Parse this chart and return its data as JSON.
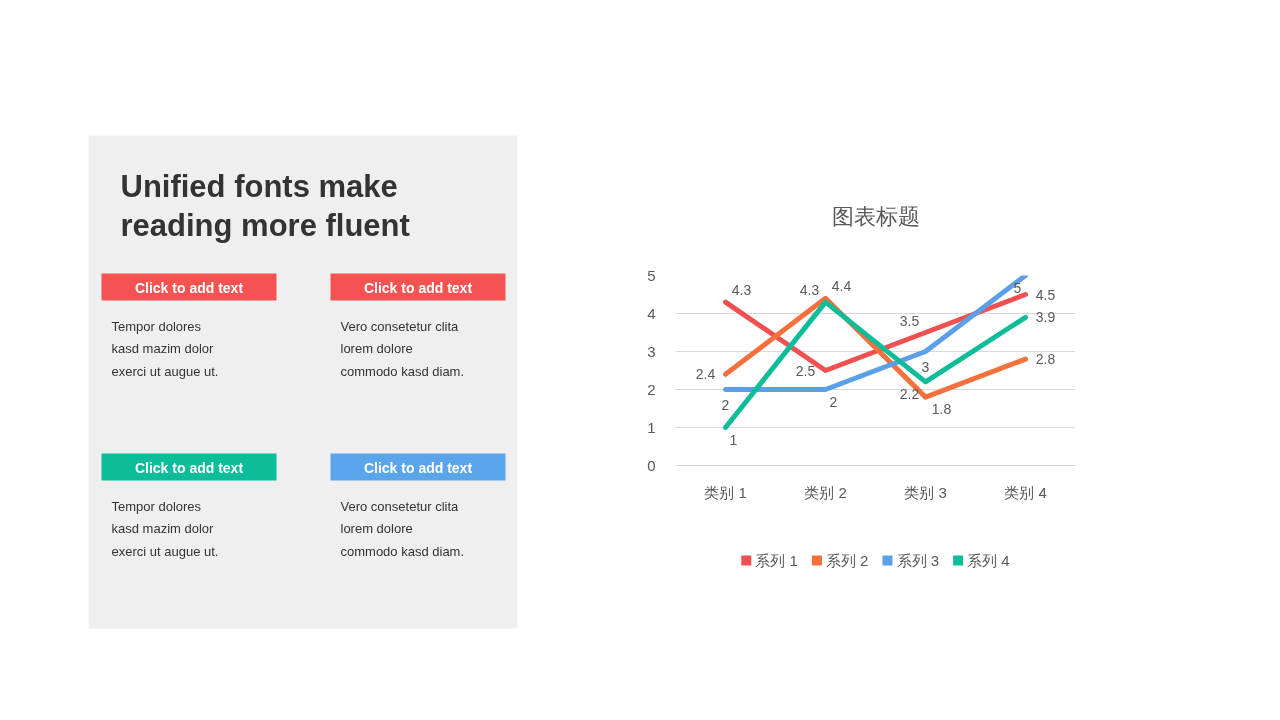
{
  "chart_data": [
    {
      "type": "other",
      "title": "Unified fonts make\nreading more fluent",
      "annotations": [
        "Click to add text",
        "Click to add text",
        "Tempor dolores\nkasd mazim dolor\nexerci ut augue ut.",
        "Vero consetetur clita\nlorem dolore\ncommodo kasd diam.",
        "Click to add text",
        "Click to add text",
        "Tempor dolores\nkasd mazim dolor\nexerci ut augue ut.",
        "Vero consetetur clita\nlorem dolore\ncommodo kasd diam."
      ]
    },
    {
      "type": "line",
      "title": "图表标题",
      "categories": [
        "类别 1",
        "类别 2",
        "类别 3",
        "类别 4"
      ],
      "series": [
        {
          "name": "系列 1",
          "color": "#f05050",
          "values": [
            4.3,
            2.5,
            3.5,
            4.5
          ]
        },
        {
          "name": "系列 2",
          "color": "#f5703c",
          "values": [
            2.4,
            4.4,
            1.8,
            2.8
          ]
        },
        {
          "name": "系列 3",
          "color": "#5b9fe8",
          "values": [
            2,
            2,
            3,
            5
          ]
        },
        {
          "name": "系列 4",
          "color": "#0cbd99",
          "values": [
            1,
            4.3,
            2.2,
            3.9
          ]
        }
      ],
      "ylim": [
        0,
        5
      ],
      "yticks": [
        0,
        1,
        2,
        3,
        4,
        5
      ],
      "grid": "y",
      "legend": "bottom",
      "data_labels": true,
      "line_style": "solid"
    }
  ]
}
